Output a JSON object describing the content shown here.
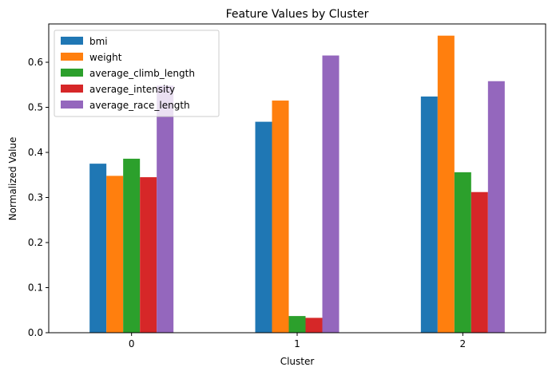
{
  "chart_data": {
    "type": "bar",
    "title": "Feature Values by Cluster",
    "xlabel": "Cluster",
    "ylabel": "Normalized Value",
    "categories": [
      "0",
      "1",
      "2"
    ],
    "ylim": [
      0,
      0.685
    ],
    "yticks": [
      "0.0",
      "0.1",
      "0.2",
      "0.3",
      "0.4",
      "0.5",
      "0.6"
    ],
    "legend_position": "top-left",
    "grid": false,
    "series": [
      {
        "name": "bmi",
        "color": "#1f77b4",
        "values": [
          0.375,
          0.468,
          0.524
        ]
      },
      {
        "name": "weight",
        "color": "#ff7f0e",
        "values": [
          0.348,
          0.515,
          0.659
        ]
      },
      {
        "name": "average_climb_length",
        "color": "#2ca02c",
        "values": [
          0.386,
          0.037,
          0.356
        ]
      },
      {
        "name": "average_intensity",
        "color": "#d62728",
        "values": [
          0.345,
          0.033,
          0.312
        ]
      },
      {
        "name": "average_race_length",
        "color": "#9467bd",
        "values": [
          0.548,
          0.615,
          0.558
        ]
      }
    ]
  }
}
